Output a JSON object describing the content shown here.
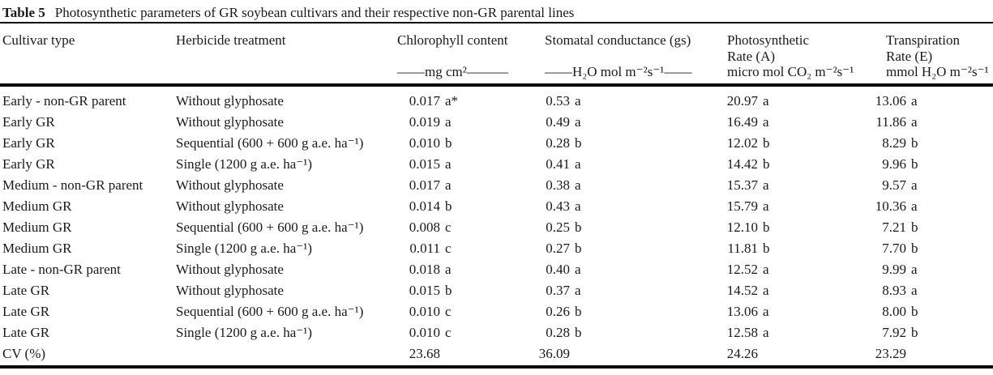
{
  "table": {
    "label": "Table 5",
    "caption": "Photosynthetic parameters of GR soybean cultivars and their respective non-GR parental lines",
    "columns": [
      {
        "lines": [
          "Cultivar type",
          "",
          ""
        ]
      },
      {
        "lines": [
          "Herbicide treatment",
          "",
          ""
        ]
      },
      {
        "lines": [
          "Chlorophyll content",
          "",
          "——mg cm²———"
        ]
      },
      {
        "lines": [
          "Stomatal conductance (gs)",
          "",
          "——H₂O mol m⁻²s⁻¹——"
        ]
      },
      {
        "lines": [
          "Photosynthetic",
          "Rate (A)",
          "micro mol CO₂ m⁻²s⁻¹"
        ]
      },
      {
        "lines": [
          "Transpiration",
          "Rate (E)",
          "mmol H₂O m⁻²s⁻¹"
        ]
      }
    ],
    "rows": [
      {
        "cultivar": "Early - non-GR parent",
        "treatment": "Without glyphosate",
        "chl": "0.017",
        "chl_sig": "a*",
        "gs": "0.53",
        "gs_sig": "a",
        "a": "20.97",
        "a_sig": "a",
        "e": "13.06",
        "e_sig": "a"
      },
      {
        "cultivar": "Early GR",
        "treatment": "Without glyphosate",
        "chl": "0.019",
        "chl_sig": "a",
        "gs": "0.49",
        "gs_sig": "a",
        "a": "16.49",
        "a_sig": "a",
        "e": "11.86",
        "e_sig": "a"
      },
      {
        "cultivar": "Early GR",
        "treatment": "Sequential (600 + 600 g a.e. ha⁻¹)",
        "chl": "0.010",
        "chl_sig": "b",
        "gs": "0.28",
        "gs_sig": "b",
        "a": "12.02",
        "a_sig": "b",
        "e": "8.29",
        "e_sig": "b"
      },
      {
        "cultivar": "Early GR",
        "treatment": "Single (1200 g a.e. ha⁻¹)",
        "chl": "0.015",
        "chl_sig": "a",
        "gs": "0.41",
        "gs_sig": "a",
        "a": "14.42",
        "a_sig": "b",
        "e": "9.96",
        "e_sig": "b"
      },
      {
        "cultivar": "Medium - non-GR parent",
        "treatment": "Without glyphosate",
        "chl": "0.017",
        "chl_sig": "a",
        "gs": "0.38",
        "gs_sig": "a",
        "a": "15.37",
        "a_sig": "a",
        "e": "9.57",
        "e_sig": "a"
      },
      {
        "cultivar": "Medium GR",
        "treatment": "Without glyphosate",
        "chl": "0.014",
        "chl_sig": "b",
        "gs": "0.43",
        "gs_sig": "a",
        "a": "15.79",
        "a_sig": "a",
        "e": "10.36",
        "e_sig": "a"
      },
      {
        "cultivar": "Medium GR",
        "treatment": "Sequential (600 + 600 g a.e. ha⁻¹)",
        "chl": "0.008",
        "chl_sig": "c",
        "gs": "0.25",
        "gs_sig": "b",
        "a": "12.10",
        "a_sig": "b",
        "e": "7.21",
        "e_sig": "b"
      },
      {
        "cultivar": "Medium GR",
        "treatment": "Single (1200 g a.e. ha⁻¹)",
        "chl": "0.011",
        "chl_sig": "c",
        "gs": "0.27",
        "gs_sig": "b",
        "a": "11.81",
        "a_sig": "b",
        "e": "7.70",
        "e_sig": "b"
      },
      {
        "cultivar": "Late - non-GR parent",
        "treatment": "Without glyphosate",
        "chl": "0.018",
        "chl_sig": "a",
        "gs": "0.40",
        "gs_sig": "a",
        "a": "12.52",
        "a_sig": "a",
        "e": "9.99",
        "e_sig": "a"
      },
      {
        "cultivar": "Late GR",
        "treatment": "Without glyphosate",
        "chl": "0.015",
        "chl_sig": "b",
        "gs": "0.37",
        "gs_sig": "a",
        "a": "14.52",
        "a_sig": "a",
        "e": "8.93",
        "e_sig": "a"
      },
      {
        "cultivar": "Late GR",
        "treatment": "Sequential (600 + 600 g a.e. ha⁻¹)",
        "chl": "0.010",
        "chl_sig": "c",
        "gs": "0.26",
        "gs_sig": "b",
        "a": "13.06",
        "a_sig": "a",
        "e": "8.00",
        "e_sig": "b"
      },
      {
        "cultivar": "Late GR",
        "treatment": "Single (1200 g a.e. ha⁻¹)",
        "chl": "0.010",
        "chl_sig": "c",
        "gs": "0.28",
        "gs_sig": "b",
        "a": "12.58",
        "a_sig": "a",
        "e": "7.92",
        "e_sig": "b"
      },
      {
        "cultivar": "CV (%)",
        "treatment": "",
        "chl": "23.68",
        "chl_sig": "",
        "gs": "36.09",
        "gs_sig": "",
        "a": "24.26",
        "a_sig": "",
        "e": "23.29",
        "e_sig": ""
      }
    ]
  }
}
